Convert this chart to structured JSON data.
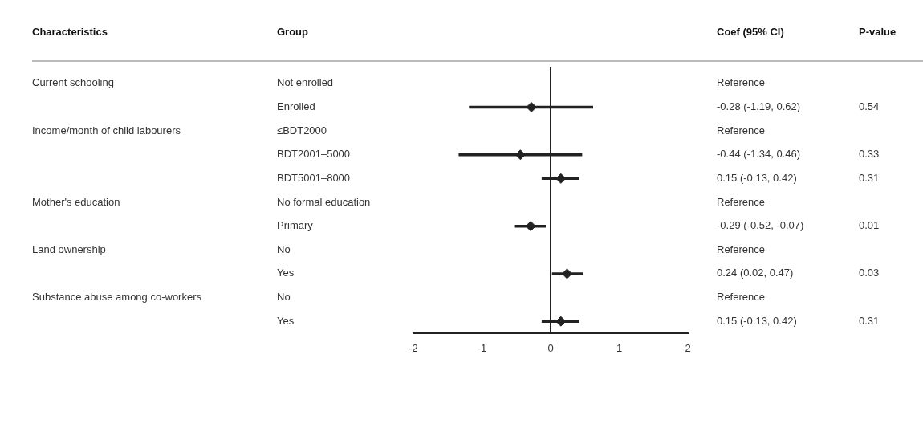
{
  "chart_data": {
    "type": "scatter",
    "orientation": "horizontal",
    "categories": [
      "Not enrolled",
      "Enrolled",
      "≤BDT2000",
      "BDT2001–5000",
      "BDT5001–8000",
      "No formal education",
      "Primary",
      "No",
      "Yes",
      "No",
      "Yes"
    ],
    "values": [
      null,
      -0.28,
      null,
      -0.44,
      0.15,
      null,
      -0.29,
      null,
      0.24,
      null,
      0.15
    ],
    "errors": [
      null,
      [
        -1.19,
        0.62
      ],
      null,
      [
        -1.34,
        0.46
      ],
      [
        -0.13,
        0.42
      ],
      null,
      [
        -0.52,
        -0.07
      ],
      null,
      [
        0.02,
        0.47
      ],
      null,
      [
        -0.13,
        0.42
      ]
    ],
    "color": "#222222",
    "marker": "diamond",
    "grid": false,
    "legend": false,
    "xlim": [
      -2,
      2
    ],
    "xticks": [
      -2,
      -1,
      0,
      1,
      2
    ],
    "ref_lines": [
      {
        "axis": "x",
        "value": 0,
        "color": "#222222"
      }
    ],
    "annotations": [
      "Characteristics",
      "Group",
      "Coef (95% CI)",
      "P-value",
      "Current schooling",
      "Income/month of child labourers",
      "Mother's education",
      "Land ownership",
      "Substance abuse among co-workers",
      "Reference",
      "-0.28 (-1.19, 0.62)",
      "Reference",
      "-0.44 (-1.34, 0.46)",
      "0.15 (-0.13, 0.42)",
      "Reference",
      "-0.29 (-0.52, -0.07)",
      "Reference",
      "0.24 (0.02, 0.47)",
      "Reference",
      "0.15 (-0.13, 0.42)",
      "0.54",
      "0.33",
      "0.31",
      "0.01",
      "0.03",
      "0.31"
    ]
  }
}
